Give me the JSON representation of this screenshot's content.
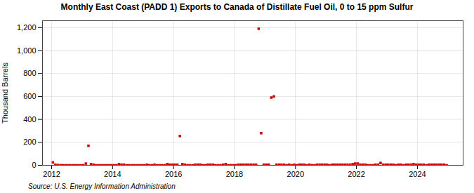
{
  "chart_data": {
    "type": "scatter",
    "title": "Monthly East Coast (PADD 1) Exports to Canada of Distillate Fuel Oil, 0 to 15 ppm Sulfur",
    "ylabel": "Thousand Barrels",
    "annotations": [
      "Source: U.S. Energy Information Administration"
    ],
    "color": "#cc0000",
    "marker": "square",
    "grid": true,
    "xlim": [
      2011.7,
      2025.5
    ],
    "xticks": [
      2012,
      2014,
      2016,
      2018,
      2020,
      2022,
      2024
    ],
    "ylim": [
      0,
      1260
    ],
    "yticks": [
      0,
      200,
      400,
      600,
      800,
      {
        "value": 1000,
        "label": "1,000"
      },
      {
        "value": 1200,
        "label": "1,200"
      }
    ],
    "x": [
      2012.0416666666667,
      2012.125,
      2012.2083333333333,
      2012.2916666666667,
      2012.375,
      2012.4583333333333,
      2012.5416666666667,
      2012.625,
      2012.7083333333333,
      2012.7916666666667,
      2012.875,
      2012.9583333333333,
      2013.0416666666667,
      2013.125,
      2013.2083333333333,
      2013.2916666666667,
      2013.375,
      2013.4583333333333,
      2013.5416666666667,
      2013.625,
      2013.7083333333333,
      2013.7916666666667,
      2013.875,
      2013.9583333333333,
      2014.0416666666667,
      2014.125,
      2014.2083333333333,
      2014.2916666666667,
      2014.375,
      2014.4583333333333,
      2014.5416666666667,
      2014.625,
      2014.7083333333333,
      2014.7916666666667,
      2014.875,
      2014.9583333333333,
      2015.0416666666667,
      2015.125,
      2015.2083333333333,
      2015.2916666666667,
      2015.375,
      2015.4583333333333,
      2015.5416666666667,
      2015.625,
      2015.7083333333333,
      2015.7916666666667,
      2015.875,
      2015.9583333333333,
      2016.0416666666667,
      2016.125,
      2016.2083333333333,
      2016.2916666666667,
      2016.375,
      2016.4583333333333,
      2016.5416666666667,
      2016.625,
      2016.7083333333333,
      2016.7916666666667,
      2016.875,
      2016.9583333333333,
      2017.0416666666667,
      2017.125,
      2017.2083333333333,
      2017.2916666666667,
      2017.375,
      2017.4583333333333,
      2017.5416666666667,
      2017.625,
      2017.7083333333333,
      2017.7916666666667,
      2017.875,
      2017.9583333333333,
      2018.0416666666667,
      2018.125,
      2018.2083333333333,
      2018.2916666666667,
      2018.375,
      2018.4583333333333,
      2018.5416666666667,
      2018.625,
      2018.7083333333333,
      2018.7916666666667,
      2018.875,
      2018.9583333333333,
      2019.0416666666667,
      2019.125,
      2019.2083333333333,
      2019.2916666666667,
      2019.375,
      2019.4583333333333,
      2019.5416666666667,
      2019.625,
      2019.7083333333333,
      2019.7916666666667,
      2019.875,
      2019.9583333333333,
      2020.0416666666667,
      2020.125,
      2020.2083333333333,
      2020.2916666666667,
      2020.375,
      2020.4583333333333,
      2020.5416666666667,
      2020.625,
      2020.7083333333333,
      2020.7916666666667,
      2020.875,
      2020.9583333333333,
      2021.0416666666667,
      2021.125,
      2021.2083333333333,
      2021.2916666666667,
      2021.375,
      2021.4583333333333,
      2021.5416666666667,
      2021.625,
      2021.7083333333333,
      2021.7916666666667,
      2021.875,
      2021.9583333333333,
      2022.0416666666667,
      2022.125,
      2022.2083333333333,
      2022.2916666666667,
      2022.375,
      2022.4583333333333,
      2022.5416666666667,
      2022.625,
      2022.7083333333333,
      2022.7916666666667,
      2022.875,
      2022.9583333333333,
      2023.0416666666667,
      2023.125,
      2023.2083333333333,
      2023.2916666666667,
      2023.375,
      2023.4583333333333,
      2023.5416666666667,
      2023.625,
      2023.7083333333333,
      2023.7916666666667,
      2023.875,
      2023.9583333333333,
      2024.0416666666667,
      2024.125,
      2024.2083333333333,
      2024.2916666666667,
      2024.375,
      2024.4583333333333,
      2024.5416666666667,
      2024.625,
      2024.7083333333333,
      2024.7916666666667,
      2024.875,
      2024.9583333333333
    ],
    "values": [
      25,
      5,
      2,
      0,
      0,
      0,
      0,
      0,
      0,
      0,
      0,
      0,
      0,
      15,
      170,
      10,
      5,
      0,
      0,
      0,
      0,
      0,
      0,
      0,
      0,
      0,
      10,
      5,
      5,
      0,
      0,
      0,
      0,
      0,
      0,
      0,
      0,
      5,
      0,
      0,
      5,
      0,
      0,
      0,
      0,
      10,
      5,
      5,
      5,
      5,
      255,
      10,
      5,
      0,
      0,
      0,
      5,
      5,
      5,
      0,
      0,
      5,
      5,
      5,
      0,
      0,
      0,
      5,
      10,
      0,
      0,
      0,
      0,
      5,
      5,
      5,
      5,
      5,
      5,
      5,
      5,
      1190,
      280,
      5,
      5,
      5,
      590,
      600,
      5,
      5,
      5,
      5,
      0,
      5,
      0,
      5,
      0,
      5,
      5,
      5,
      0,
      5,
      0,
      0,
      5,
      5,
      5,
      5,
      5,
      0,
      5,
      5,
      5,
      5,
      5,
      5,
      5,
      5,
      10,
      15,
      15,
      5,
      5,
      5,
      0,
      0,
      0,
      5,
      5,
      20,
      5,
      5,
      5,
      5,
      5,
      0,
      5,
      5,
      0,
      5,
      5,
      5,
      10,
      5,
      5,
      5,
      5,
      0,
      5,
      5,
      5,
      5,
      5,
      5,
      5,
      0
    ]
  }
}
